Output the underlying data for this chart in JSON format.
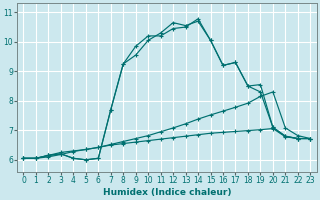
{
  "xlabel": "Humidex (Indice chaleur)",
  "bg_color": "#cce8ee",
  "grid_color": "#ffffff",
  "line_color": "#007070",
  "xlim": [
    -0.5,
    23.5
  ],
  "ylim": [
    5.6,
    11.3
  ],
  "xticks": [
    0,
    1,
    2,
    3,
    4,
    5,
    6,
    7,
    8,
    9,
    10,
    11,
    12,
    13,
    14,
    15,
    16,
    17,
    18,
    19,
    20,
    21,
    22,
    23
  ],
  "yticks": [
    6,
    7,
    8,
    9,
    10,
    11
  ],
  "curve1_x": [
    0,
    1,
    2,
    3,
    4,
    5,
    6,
    7,
    8,
    9,
    10,
    11,
    12,
    13,
    14,
    15,
    16,
    17,
    18,
    19,
    20,
    21,
    22,
    23
  ],
  "curve1_y": [
    6.05,
    6.05,
    6.15,
    6.2,
    6.05,
    6.0,
    6.05,
    7.7,
    9.25,
    9.85,
    10.2,
    10.2,
    10.45,
    10.5,
    10.78,
    10.05,
    9.2,
    9.3,
    8.5,
    8.3,
    7.1,
    6.8,
    6.72,
    6.72
  ],
  "curve2_x": [
    0,
    1,
    2,
    3,
    4,
    5,
    6,
    7,
    8,
    9,
    10,
    11,
    12,
    13,
    14,
    15,
    16,
    17,
    18,
    19,
    20,
    21,
    22,
    23
  ],
  "curve2_y": [
    6.05,
    6.05,
    6.15,
    6.2,
    6.05,
    6.0,
    6.05,
    7.7,
    9.25,
    9.55,
    10.05,
    10.3,
    10.65,
    10.55,
    10.7,
    10.05,
    9.2,
    9.3,
    8.5,
    8.55,
    7.1,
    6.8,
    6.72,
    6.72
  ],
  "curve3_x": [
    0,
    1,
    2,
    3,
    4,
    5,
    6,
    7,
    8,
    9,
    10,
    11,
    12,
    13,
    14,
    15,
    16,
    17,
    18,
    19,
    20,
    21,
    22,
    23
  ],
  "curve3_y": [
    6.05,
    6.05,
    6.15,
    6.25,
    6.3,
    6.35,
    6.42,
    6.52,
    6.62,
    6.72,
    6.82,
    6.95,
    7.08,
    7.22,
    7.38,
    7.52,
    7.65,
    7.78,
    7.92,
    8.15,
    8.3,
    7.08,
    6.82,
    6.72
  ],
  "curve4_x": [
    0,
    1,
    2,
    3,
    4,
    5,
    6,
    7,
    8,
    9,
    10,
    11,
    12,
    13,
    14,
    15,
    16,
    17,
    18,
    19,
    20,
    21,
    22,
    23
  ],
  "curve4_y": [
    6.05,
    6.05,
    6.1,
    6.18,
    6.28,
    6.35,
    6.42,
    6.5,
    6.55,
    6.6,
    6.65,
    6.7,
    6.75,
    6.8,
    6.85,
    6.9,
    6.93,
    6.96,
    6.99,
    7.02,
    7.06,
    6.78,
    6.72,
    6.72
  ]
}
